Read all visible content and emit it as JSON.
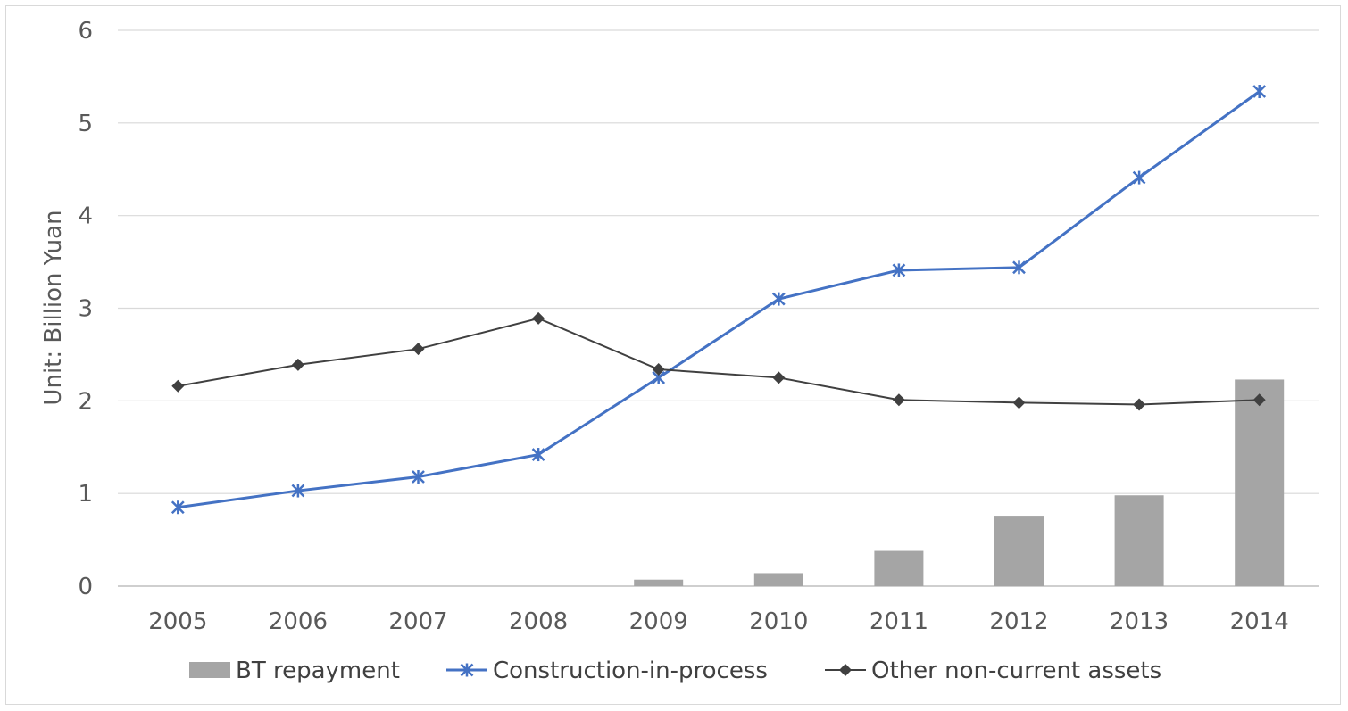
{
  "chart_data": {
    "type": "bar+line",
    "title": "",
    "xlabel": "",
    "ylabel": "Unit: Billion Yuan",
    "ylim": [
      0,
      6
    ],
    "yticks": [
      "0",
      "1",
      "2",
      "3",
      "4",
      "5",
      "6"
    ],
    "categories": [
      "2005",
      "2006",
      "2007",
      "2008",
      "2009",
      "2010",
      "2011",
      "2012",
      "2013",
      "2014"
    ],
    "grid": true,
    "legend_position": "bottom",
    "series": [
      {
        "name": "BT repayment",
        "kind": "bar",
        "color": "#a5a5a5",
        "values": [
          0,
          0,
          0,
          0,
          0.07,
          0.14,
          0.38,
          0.76,
          0.98,
          2.23
        ]
      },
      {
        "name": "Construction-in-process",
        "kind": "line",
        "marker": "star",
        "color": "#4472c4",
        "values": [
          0.85,
          1.03,
          1.18,
          1.42,
          2.25,
          3.1,
          3.41,
          3.44,
          4.41,
          5.34
        ]
      },
      {
        "name": "Other non-current assets",
        "kind": "line",
        "marker": "diamond",
        "color": "#404040",
        "values": [
          2.16,
          2.39,
          2.56,
          2.89,
          2.34,
          2.25,
          2.01,
          1.98,
          1.96,
          2.01
        ]
      }
    ]
  }
}
